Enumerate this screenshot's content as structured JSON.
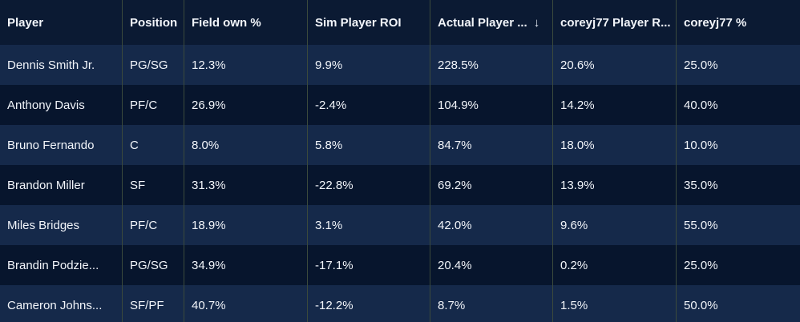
{
  "table": {
    "headers": [
      "Player",
      "Position",
      "Field own %",
      "Sim Player ROI",
      "Actual Player ...",
      "coreyj77 Player R...",
      "coreyj77 %"
    ],
    "sort_icon": "arrow-down-icon",
    "rows": [
      [
        "Dennis Smith Jr.",
        "PG/SG",
        "12.3%",
        "9.9%",
        "228.5%",
        "20.6%",
        "25.0%"
      ],
      [
        "Anthony Davis",
        "PF/C",
        "26.9%",
        "-2.4%",
        "104.9%",
        "14.2%",
        "40.0%"
      ],
      [
        "Bruno Fernando",
        "C",
        "8.0%",
        "5.8%",
        "84.7%",
        "18.0%",
        "10.0%"
      ],
      [
        "Brandon Miller",
        "SF",
        "31.3%",
        "-22.8%",
        "69.2%",
        "13.9%",
        "35.0%"
      ],
      [
        "Miles Bridges",
        "PF/C",
        "18.9%",
        "3.1%",
        "42.0%",
        "9.6%",
        "55.0%"
      ],
      [
        "Brandin Podzie...",
        "PG/SG",
        "34.9%",
        "-17.1%",
        "20.4%",
        "0.2%",
        "25.0%"
      ],
      [
        "Cameron Johns...",
        "SF/PF",
        "40.7%",
        "-12.2%",
        "8.7%",
        "1.5%",
        "50.0%"
      ]
    ]
  },
  "colors": {
    "header_bg": "#0b1a33",
    "row_dark": "#07152d",
    "row_light": "#15294a",
    "text": "#f2f5fa",
    "divider": "#3b4a3c"
  }
}
